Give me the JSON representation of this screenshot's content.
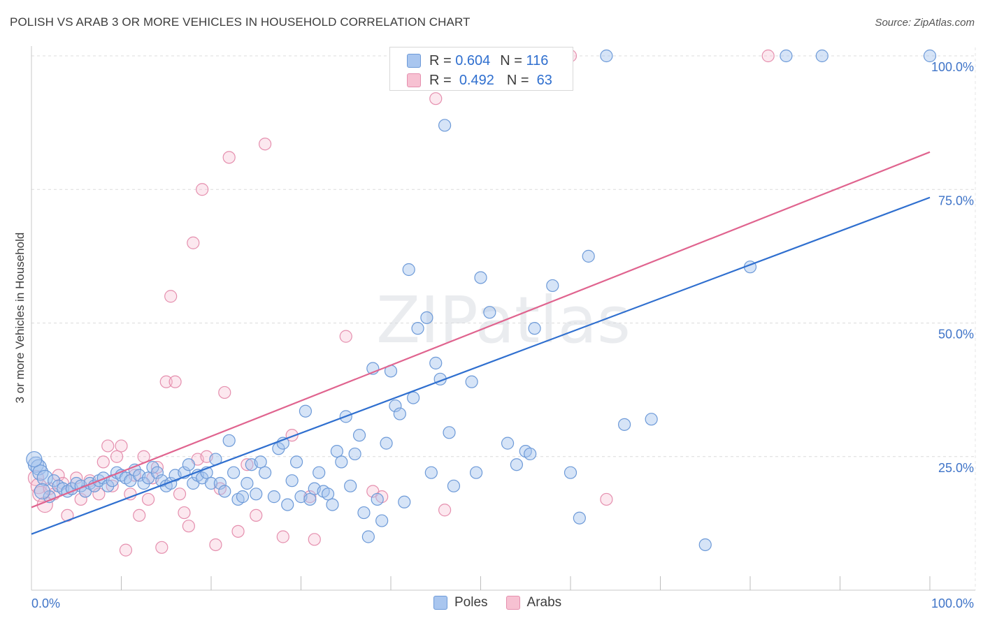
{
  "title": "POLISH VS ARAB 3 OR MORE VEHICLES IN HOUSEHOLD CORRELATION CHART",
  "source": "Source: ZipAtlas.com",
  "watermark": "ZIPatlas",
  "legend": {
    "rows": [
      {
        "r_label": "R =",
        "r_value": "0.604",
        "n_label": "N =",
        "n_value": "116",
        "color": "#6d9ad8"
      },
      {
        "r_label": "R =",
        "r_value": "0.492",
        "n_label": "N =",
        "n_value": "63",
        "color": "#e58fae"
      }
    ]
  },
  "bottom_legend": [
    {
      "label": "Poles",
      "color": "#6d9ad8"
    },
    {
      "label": "Arabs",
      "color": "#e58fae"
    }
  ],
  "chart_data": {
    "type": "scatter",
    "title": "POLISH VS ARAB 3 OR MORE VEHICLES IN HOUSEHOLD CORRELATION CHART",
    "xlabel": "",
    "ylabel": "3 or more Vehicles in Household",
    "xlim": [
      0,
      100
    ],
    "ylim": [
      0,
      100
    ],
    "x_tick_labels": [
      "0.0%",
      "100.0%"
    ],
    "y_tick_labels": [
      {
        "value": 25,
        "label": "25.0%"
      },
      {
        "value": 50,
        "label": "50.0%"
      },
      {
        "value": 75,
        "label": "75.0%"
      },
      {
        "value": 100,
        "label": "100.0%"
      }
    ],
    "grid": true,
    "legend_position": "top-center",
    "series": [
      {
        "name": "Poles",
        "color": "#6d9ad8",
        "trendline": {
          "x": [
            0,
            100
          ],
          "y": [
            10.5,
            73.5
          ],
          "color": "#2f6fcf"
        },
        "points": [
          [
            0.5,
            23.5
          ],
          [
            0.8,
            23.0
          ],
          [
            1.0,
            22.0
          ],
          [
            1.5,
            21.0
          ],
          [
            2.0,
            17.5
          ],
          [
            2.5,
            20.5
          ],
          [
            3.0,
            19.5
          ],
          [
            3.5,
            19.0
          ],
          [
            4.0,
            18.5
          ],
          [
            4.5,
            19.0
          ],
          [
            5.0,
            20.0
          ],
          [
            5.5,
            19.5
          ],
          [
            6.0,
            18.5
          ],
          [
            6.5,
            20.0
          ],
          [
            7.0,
            19.5
          ],
          [
            7.5,
            20.5
          ],
          [
            8.0,
            21.0
          ],
          [
            8.5,
            19.5
          ],
          [
            9.0,
            20.5
          ],
          [
            9.5,
            22.0
          ],
          [
            10.0,
            21.5
          ],
          [
            10.5,
            21.0
          ],
          [
            11.0,
            20.5
          ],
          [
            11.5,
            22.5
          ],
          [
            12.0,
            21.5
          ],
          [
            12.5,
            20.0
          ],
          [
            13.0,
            21.0
          ],
          [
            13.5,
            23.0
          ],
          [
            14.0,
            22.0
          ],
          [
            14.5,
            20.5
          ],
          [
            15.0,
            19.5
          ],
          [
            15.5,
            20.0
          ],
          [
            16.0,
            21.5
          ],
          [
            17.0,
            22.0
          ],
          [
            17.5,
            23.5
          ],
          [
            18.0,
            20.0
          ],
          [
            18.5,
            21.5
          ],
          [
            19.0,
            21.0
          ],
          [
            19.5,
            22.0
          ],
          [
            20.0,
            20.0
          ],
          [
            20.5,
            24.5
          ],
          [
            21.0,
            20.0
          ],
          [
            21.5,
            18.5
          ],
          [
            22.0,
            28.0
          ],
          [
            22.5,
            22.0
          ],
          [
            23.0,
            17.0
          ],
          [
            23.5,
            17.5
          ],
          [
            24.0,
            20.0
          ],
          [
            24.5,
            23.5
          ],
          [
            25.0,
            18.0
          ],
          [
            25.5,
            24.0
          ],
          [
            26.0,
            22.0
          ],
          [
            27.0,
            17.5
          ],
          [
            27.5,
            26.5
          ],
          [
            28.0,
            27.5
          ],
          [
            28.5,
            16.0
          ],
          [
            29.0,
            20.5
          ],
          [
            29.5,
            24.0
          ],
          [
            30.0,
            17.5
          ],
          [
            30.5,
            33.5
          ],
          [
            31.0,
            17.0
          ],
          [
            31.5,
            19.0
          ],
          [
            32.0,
            22.0
          ],
          [
            32.5,
            18.5
          ],
          [
            33.0,
            18.0
          ],
          [
            33.5,
            16.0
          ],
          [
            34.0,
            26.0
          ],
          [
            34.5,
            24.0
          ],
          [
            35.0,
            32.5
          ],
          [
            35.5,
            19.5
          ],
          [
            36.0,
            25.5
          ],
          [
            36.5,
            29.0
          ],
          [
            37.0,
            14.5
          ],
          [
            37.5,
            10.0
          ],
          [
            38.0,
            41.5
          ],
          [
            38.5,
            17.0
          ],
          [
            39.0,
            13.0
          ],
          [
            39.5,
            27.5
          ],
          [
            40.0,
            41.0
          ],
          [
            40.5,
            34.5
          ],
          [
            41.0,
            33.0
          ],
          [
            41.5,
            16.5
          ],
          [
            42.0,
            60.0
          ],
          [
            42.5,
            36.0
          ],
          [
            43.0,
            49.0
          ],
          [
            44.0,
            51.0
          ],
          [
            44.5,
            22.0
          ],
          [
            45.0,
            42.5
          ],
          [
            45.5,
            39.5
          ],
          [
            46.0,
            87.0
          ],
          [
            46.5,
            29.5
          ],
          [
            47.0,
            19.5
          ],
          [
            48.0,
            100.0
          ],
          [
            49.0,
            39.0
          ],
          [
            49.5,
            22.0
          ],
          [
            50.0,
            58.5
          ],
          [
            51.0,
            52.0
          ],
          [
            53.0,
            27.5
          ],
          [
            54.0,
            23.5
          ],
          [
            55.0,
            26.0
          ],
          [
            55.5,
            25.5
          ],
          [
            56.0,
            49.0
          ],
          [
            58.0,
            57.0
          ],
          [
            60.0,
            22.0
          ],
          [
            61.0,
            13.5
          ],
          [
            62.0,
            62.5
          ],
          [
            64.0,
            100.0
          ],
          [
            66.0,
            31.0
          ],
          [
            69.0,
            32.0
          ],
          [
            75.0,
            8.5
          ],
          [
            80.0,
            60.5
          ],
          [
            84.0,
            100.0
          ],
          [
            88.0,
            100.0
          ],
          [
            100.0,
            100.0
          ],
          [
            0.3,
            24.5
          ],
          [
            1.2,
            18.5
          ]
        ]
      },
      {
        "name": "Arabs",
        "color": "#e58fae",
        "trendline": {
          "x": [
            0,
            100
          ],
          "y": [
            15.5,
            82.0
          ],
          "color": "#e0648f"
        },
        "points": [
          [
            0.5,
            21.0
          ],
          [
            0.8,
            19.5
          ],
          [
            1.0,
            18.0
          ],
          [
            1.5,
            16.0
          ],
          [
            2.0,
            19.0
          ],
          [
            2.5,
            18.0
          ],
          [
            3.0,
            21.5
          ],
          [
            3.5,
            20.0
          ],
          [
            4.0,
            14.0
          ],
          [
            4.5,
            19.0
          ],
          [
            5.0,
            21.0
          ],
          [
            5.5,
            17.0
          ],
          [
            6.0,
            18.5
          ],
          [
            6.5,
            20.5
          ],
          [
            7.0,
            19.5
          ],
          [
            7.5,
            18.0
          ],
          [
            8.0,
            24.0
          ],
          [
            8.5,
            27.0
          ],
          [
            9.0,
            19.5
          ],
          [
            9.5,
            25.0
          ],
          [
            10.0,
            27.0
          ],
          [
            10.5,
            7.5
          ],
          [
            11.0,
            18.0
          ],
          [
            11.5,
            21.5
          ],
          [
            12.0,
            14.0
          ],
          [
            12.5,
            25.0
          ],
          [
            13.0,
            17.0
          ],
          [
            13.5,
            21.0
          ],
          [
            14.0,
            23.0
          ],
          [
            14.5,
            8.0
          ],
          [
            15.0,
            39.0
          ],
          [
            15.5,
            55.0
          ],
          [
            16.0,
            39.0
          ],
          [
            16.5,
            18.0
          ],
          [
            17.0,
            14.5
          ],
          [
            17.5,
            12.0
          ],
          [
            18.0,
            65.0
          ],
          [
            18.5,
            24.5
          ],
          [
            19.0,
            75.0
          ],
          [
            19.5,
            25.0
          ],
          [
            20.5,
            8.5
          ],
          [
            21.0,
            19.0
          ],
          [
            21.5,
            37.0
          ],
          [
            22.0,
            81.0
          ],
          [
            23.0,
            11.0
          ],
          [
            24.0,
            23.5
          ],
          [
            25.0,
            14.0
          ],
          [
            26.0,
            83.5
          ],
          [
            28.0,
            10.0
          ],
          [
            29.0,
            29.0
          ],
          [
            31.0,
            17.5
          ],
          [
            31.5,
            9.5
          ],
          [
            35.0,
            47.5
          ],
          [
            38.0,
            18.5
          ],
          [
            39.0,
            17.5
          ],
          [
            45.0,
            92.0
          ],
          [
            46.0,
            15.0
          ],
          [
            51.0,
            100.0
          ],
          [
            53.0,
            100.0
          ],
          [
            54.0,
            100.0
          ],
          [
            60.0,
            100.0
          ],
          [
            64.0,
            17.0
          ],
          [
            82.0,
            100.0
          ]
        ]
      }
    ]
  }
}
